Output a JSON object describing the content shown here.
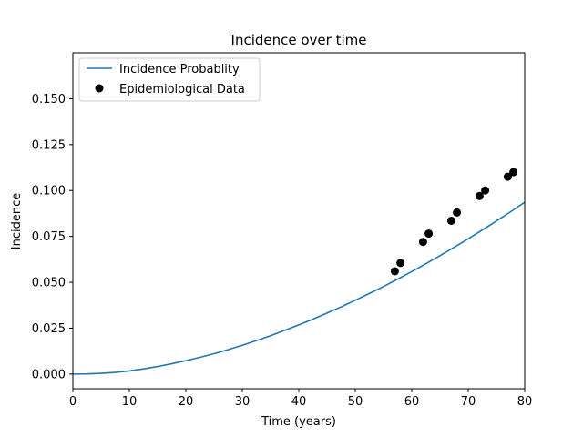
{
  "chart_data": {
    "type": "line",
    "title": "Incidence over time",
    "xlabel": "Time (years)",
    "ylabel": "Incidence",
    "xlim": [
      0,
      80
    ],
    "ylim": [
      -0.008,
      0.175
    ],
    "x_ticks": [
      0,
      10,
      20,
      30,
      40,
      50,
      60,
      70,
      80
    ],
    "y_ticks": [
      0.0,
      0.025,
      0.05,
      0.075,
      0.1,
      0.125,
      0.15
    ],
    "y_tick_labels": [
      "0.000",
      "0.025",
      "0.050",
      "0.075",
      "0.100",
      "0.125",
      "0.150"
    ],
    "grid": false,
    "legend_position": "top-left",
    "series": [
      {
        "name": "Incidence Probablity",
        "kind": "line",
        "color": "#1f77b4",
        "x": [
          0,
          2.5,
          5,
          7.5,
          10,
          12.5,
          15,
          17.5,
          20,
          22.5,
          25,
          27.5,
          30,
          32.5,
          35,
          37.5,
          40,
          42.5,
          45,
          47.5,
          50,
          52.5,
          55,
          57.5,
          60,
          62.5,
          65,
          67.5,
          70,
          72.5,
          75,
          77.5,
          80
        ],
        "y": [
          0.0,
          0.0001,
          0.0004,
          0.0009,
          0.0017,
          0.0028,
          0.0041,
          0.0056,
          0.0073,
          0.0091,
          0.0111,
          0.0133,
          0.0157,
          0.0182,
          0.0209,
          0.0238,
          0.0268,
          0.0299,
          0.0332,
          0.0366,
          0.0402,
          0.0439,
          0.0477,
          0.0517,
          0.0558,
          0.0601,
          0.0645,
          0.069,
          0.0737,
          0.0785,
          0.0834,
          0.0884,
          0.0936
        ]
      },
      {
        "name": "Epidemiological Data",
        "kind": "scatter",
        "color": "#000000",
        "x": [
          57,
          58,
          62,
          63,
          67,
          68,
          72,
          73,
          77,
          78
        ],
        "y": [
          0.056,
          0.0605,
          0.072,
          0.0765,
          0.0835,
          0.088,
          0.097,
          0.1,
          0.1075,
          0.11
        ]
      }
    ]
  }
}
